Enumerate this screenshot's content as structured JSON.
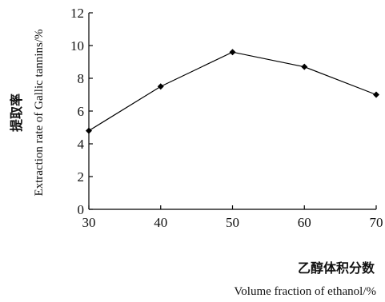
{
  "chart_data": {
    "type": "line",
    "x": [
      30,
      40,
      50,
      60,
      70
    ],
    "series": [
      {
        "values": [
          4.8,
          7.5,
          9.6,
          8.7,
          7.0
        ]
      }
    ],
    "xlabel_cn": "乙醇体积分数",
    "xlabel_en": "Volume fraction of ethanol/%",
    "ylabel_cn": "提取率",
    "ylabel_en": "Extraction rate of Gallic tannins/%",
    "x_ticks": [
      "30",
      "40",
      "50",
      "60",
      "70"
    ],
    "y_ticks": [
      "0",
      "2",
      "4",
      "6",
      "8",
      "10",
      "12"
    ],
    "xlim": [
      30,
      70
    ],
    "ylim": [
      0,
      12
    ],
    "grid": false,
    "marker": "diamond",
    "colors": {
      "line": "#000000",
      "axis": "#000000"
    }
  }
}
